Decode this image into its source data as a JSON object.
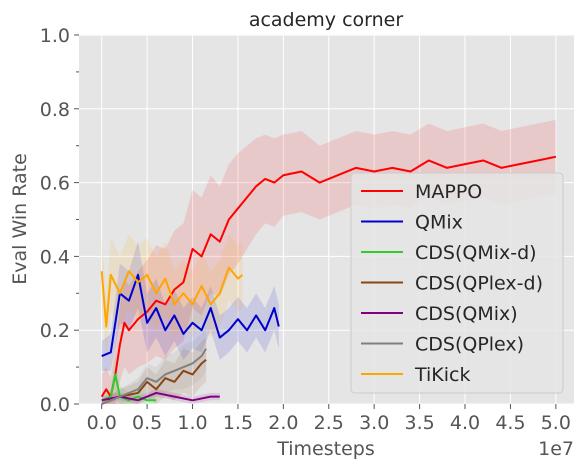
{
  "chart_data": {
    "type": "line",
    "title": "academy corner",
    "xlabel": "Timesteps",
    "ylabel": "Eval Win Rate",
    "x_offset_label": "1e7",
    "xlim": [
      -0.25,
      5.2
    ],
    "ylim": [
      0,
      1.0
    ],
    "x_ticks": [
      0.0,
      0.5,
      1.0,
      1.5,
      2.0,
      2.5,
      3.0,
      3.5,
      4.0,
      4.5,
      5.0
    ],
    "x_tick_labels": [
      "0.0",
      "0.5",
      "1.0",
      "1.5",
      "2.0",
      "2.5",
      "3.0",
      "3.5",
      "4.0",
      "4.5",
      "5.0"
    ],
    "y_ticks": [
      0.0,
      0.2,
      0.4,
      0.6,
      0.8,
      1.0
    ],
    "y_tick_labels": [
      "0.0",
      "0.2",
      "0.4",
      "0.6",
      "0.8",
      "1.0"
    ],
    "grid": true,
    "legend_position": "lower-right",
    "series": [
      {
        "name": "MAPPO",
        "color": "#ff0000",
        "x": [
          0.0,
          0.05,
          0.1,
          0.15,
          0.2,
          0.25,
          0.3,
          0.4,
          0.5,
          0.6,
          0.7,
          0.8,
          0.9,
          1.0,
          1.1,
          1.2,
          1.3,
          1.4,
          1.5,
          1.6,
          1.7,
          1.8,
          1.9,
          2.0,
          2.2,
          2.4,
          2.6,
          2.8,
          3.0,
          3.2,
          3.4,
          3.6,
          3.8,
          4.0,
          4.2,
          4.4,
          4.6,
          4.8,
          5.0
        ],
        "y": [
          0.02,
          0.04,
          0.02,
          0.08,
          0.16,
          0.22,
          0.2,
          0.23,
          0.25,
          0.28,
          0.27,
          0.31,
          0.33,
          0.42,
          0.4,
          0.46,
          0.44,
          0.5,
          0.53,
          0.56,
          0.59,
          0.61,
          0.6,
          0.62,
          0.63,
          0.6,
          0.62,
          0.64,
          0.63,
          0.64,
          0.63,
          0.66,
          0.64,
          0.65,
          0.66,
          0.64,
          0.65,
          0.66,
          0.67
        ],
        "band": [
          0.06,
          0.06,
          0.05,
          0.08,
          0.1,
          0.12,
          0.12,
          0.13,
          0.14,
          0.15,
          0.15,
          0.16,
          0.16,
          0.16,
          0.16,
          0.16,
          0.15,
          0.15,
          0.15,
          0.14,
          0.13,
          0.12,
          0.12,
          0.11,
          0.11,
          0.1,
          0.1,
          0.1,
          0.1,
          0.1,
          0.1,
          0.1,
          0.1,
          0.1,
          0.1,
          0.1,
          0.1,
          0.1,
          0.1
        ]
      },
      {
        "name": "QMix",
        "color": "#0000cc",
        "x": [
          0.0,
          0.1,
          0.2,
          0.3,
          0.4,
          0.5,
          0.6,
          0.7,
          0.8,
          0.9,
          1.0,
          1.1,
          1.2,
          1.3,
          1.4,
          1.5,
          1.6,
          1.7,
          1.8,
          1.9,
          1.95
        ],
        "y": [
          0.13,
          0.14,
          0.3,
          0.28,
          0.35,
          0.22,
          0.26,
          0.2,
          0.24,
          0.19,
          0.22,
          0.2,
          0.26,
          0.18,
          0.2,
          0.23,
          0.2,
          0.24,
          0.2,
          0.26,
          0.21
        ],
        "band": [
          0.04,
          0.05,
          0.08,
          0.08,
          0.09,
          0.08,
          0.08,
          0.07,
          0.07,
          0.07,
          0.07,
          0.06,
          0.06,
          0.06,
          0.06,
          0.06,
          0.06,
          0.06,
          0.06,
          0.06,
          0.06
        ]
      },
      {
        "name": "CDS(QMix-d)",
        "color": "#2ecc2e",
        "x": [
          0.0,
          0.1,
          0.15,
          0.2,
          0.3,
          0.4,
          0.5,
          0.6
        ],
        "y": [
          0.01,
          0.02,
          0.08,
          0.02,
          0.01,
          0.02,
          0.01,
          0.01
        ],
        "band": [
          0.01,
          0.02,
          0.05,
          0.03,
          0.02,
          0.02,
          0.01,
          0.01
        ]
      },
      {
        "name": "CDS(QPlex-d)",
        "color": "#8b4513",
        "x": [
          0.0,
          0.2,
          0.4,
          0.5,
          0.6,
          0.7,
          0.8,
          0.9,
          1.0,
          1.1,
          1.15
        ],
        "y": [
          0.0,
          0.02,
          0.03,
          0.06,
          0.04,
          0.07,
          0.06,
          0.09,
          0.08,
          0.11,
          0.12
        ],
        "band": [
          0.01,
          0.02,
          0.03,
          0.04,
          0.04,
          0.05,
          0.05,
          0.06,
          0.06,
          0.06,
          0.06
        ]
      },
      {
        "name": "CDS(QMix)",
        "color": "#800080",
        "x": [
          0.0,
          0.2,
          0.4,
          0.6,
          0.8,
          1.0,
          1.2,
          1.3
        ],
        "y": [
          0.01,
          0.02,
          0.01,
          0.03,
          0.02,
          0.01,
          0.02,
          0.02
        ],
        "band": [
          0.01,
          0.01,
          0.01,
          0.01,
          0.01,
          0.01,
          0.01,
          0.01
        ]
      },
      {
        "name": "CDS(QPlex)",
        "color": "#808080",
        "x": [
          0.0,
          0.2,
          0.4,
          0.5,
          0.6,
          0.7,
          0.8,
          0.9,
          1.0,
          1.1,
          1.15
        ],
        "y": [
          0.0,
          0.02,
          0.04,
          0.07,
          0.06,
          0.08,
          0.09,
          0.1,
          0.11,
          0.13,
          0.15
        ],
        "band": [
          0.01,
          0.02,
          0.03,
          0.04,
          0.04,
          0.05,
          0.05,
          0.06,
          0.06,
          0.06,
          0.06
        ]
      },
      {
        "name": "TiKick",
        "color": "#ffa500",
        "x": [
          0.0,
          0.05,
          0.1,
          0.2,
          0.3,
          0.4,
          0.5,
          0.6,
          0.7,
          0.8,
          0.9,
          1.0,
          1.1,
          1.2,
          1.3,
          1.4,
          1.5,
          1.55
        ],
        "y": [
          0.36,
          0.21,
          0.35,
          0.3,
          0.36,
          0.33,
          0.35,
          0.3,
          0.34,
          0.27,
          0.3,
          0.27,
          0.32,
          0.27,
          0.3,
          0.37,
          0.34,
          0.35
        ],
        "band": [
          0.1,
          0.08,
          0.1,
          0.1,
          0.1,
          0.1,
          0.1,
          0.1,
          0.1,
          0.09,
          0.09,
          0.09,
          0.09,
          0.09,
          0.09,
          0.09,
          0.09,
          0.09
        ]
      }
    ]
  }
}
